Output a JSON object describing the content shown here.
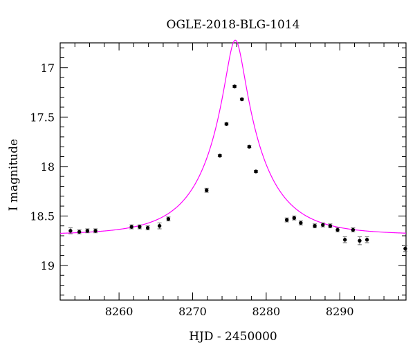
{
  "chart_data": {
    "type": "scatter",
    "title": "OGLE-2018-BLG-1014",
    "xlabel": "HJD - 2450000",
    "ylabel": "I magnitude",
    "xlim": [
      8252,
      8299
    ],
    "ylim": [
      19.35,
      16.75
    ],
    "y_inverted": true,
    "x_ticks": [
      8260,
      8270,
      8280,
      8290
    ],
    "y_ticks": [
      17,
      17.5,
      18,
      18.5,
      19
    ],
    "x_tick_labels": [
      "8260",
      "8270",
      "8280",
      "8290"
    ],
    "y_tick_labels": [
      "17",
      "17.5",
      "18",
      "18.5",
      "19"
    ],
    "grid": false,
    "series": [
      {
        "kind": "points",
        "color": "#000000",
        "points": [
          {
            "x": 8253.4,
            "y": 18.65,
            "err": 0.03
          },
          {
            "x": 8254.6,
            "y": 18.66,
            "err": 0.02
          },
          {
            "x": 8255.7,
            "y": 18.65,
            "err": 0.02
          },
          {
            "x": 8256.8,
            "y": 18.65,
            "err": 0.02
          },
          {
            "x": 8261.7,
            "y": 18.61,
            "err": 0.02
          },
          {
            "x": 8262.8,
            "y": 18.61,
            "err": 0.02
          },
          {
            "x": 8263.9,
            "y": 18.62,
            "err": 0.02
          },
          {
            "x": 8265.5,
            "y": 18.6,
            "err": 0.03
          },
          {
            "x": 8266.7,
            "y": 18.53,
            "err": 0.02
          },
          {
            "x": 8271.9,
            "y": 18.24,
            "err": 0.02
          },
          {
            "x": 8273.7,
            "y": 17.89,
            "err": 0.01
          },
          {
            "x": 8274.6,
            "y": 17.57,
            "err": 0.01
          },
          {
            "x": 8275.7,
            "y": 17.19,
            "err": 0.01
          },
          {
            "x": 8276.7,
            "y": 17.32,
            "err": 0.01
          },
          {
            "x": 8277.7,
            "y": 17.8,
            "err": 0.01
          },
          {
            "x": 8278.6,
            "y": 18.05,
            "err": 0.01
          },
          {
            "x": 8282.8,
            "y": 18.54,
            "err": 0.02
          },
          {
            "x": 8283.8,
            "y": 18.52,
            "err": 0.02
          },
          {
            "x": 8284.7,
            "y": 18.57,
            "err": 0.02
          },
          {
            "x": 8286.6,
            "y": 18.6,
            "err": 0.02
          },
          {
            "x": 8287.7,
            "y": 18.59,
            "err": 0.02
          },
          {
            "x": 8288.7,
            "y": 18.6,
            "err": 0.02
          },
          {
            "x": 8289.7,
            "y": 18.64,
            "err": 0.02
          },
          {
            "x": 8290.7,
            "y": 18.74,
            "err": 0.03
          },
          {
            "x": 8291.8,
            "y": 18.64,
            "err": 0.02
          },
          {
            "x": 8292.7,
            "y": 18.75,
            "err": 0.04
          },
          {
            "x": 8293.7,
            "y": 18.74,
            "err": 0.03
          },
          {
            "x": 8298.9,
            "y": 18.83,
            "err": 0.03
          }
        ]
      },
      {
        "kind": "line",
        "color": "#ff00ff",
        "model": {
          "baseline": 18.69,
          "t0": 8275.8,
          "tE": 7.5,
          "u0": 0.165
        }
      }
    ]
  }
}
